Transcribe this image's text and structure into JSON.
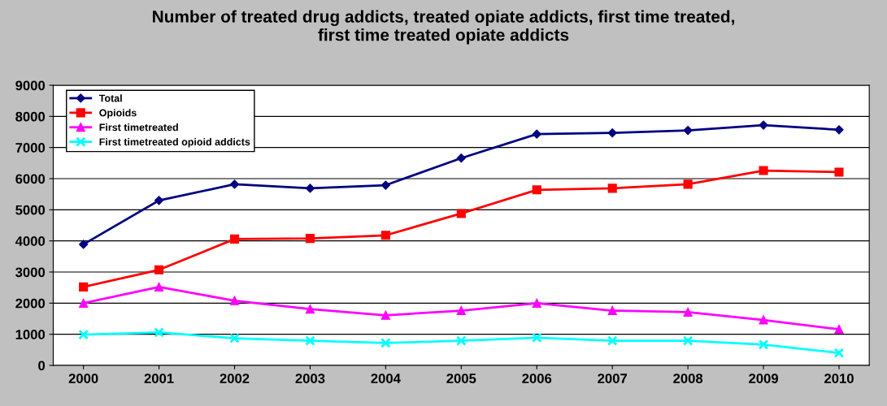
{
  "chart_data": {
    "type": "line",
    "title": "Number of treated drug addicts, treated opiate addicts, first time treated,\nfirst time treated opiate addicts",
    "categories": [
      "2000",
      "2001",
      "2002",
      "2003",
      "2004",
      "2005",
      "2006",
      "2007",
      "2008",
      "2009",
      "2010"
    ],
    "series": [
      {
        "name": "Total",
        "color": "#000080",
        "marker": "diamond",
        "values": [
          3890,
          5300,
          5820,
          5690,
          5790,
          6660,
          7430,
          7470,
          7550,
          7720,
          7570
        ]
      },
      {
        "name": "Opioids",
        "color": "#ff0000",
        "marker": "square",
        "values": [
          2520,
          3070,
          4060,
          4080,
          4180,
          4880,
          5640,
          5690,
          5820,
          6260,
          6210
        ]
      },
      {
        "name": "First timetreated",
        "color": "#ff00ff",
        "marker": "triangle",
        "values": [
          2000,
          2520,
          2080,
          1810,
          1610,
          1760,
          2000,
          1760,
          1710,
          1460,
          1160
        ]
      },
      {
        "name": "First timetreated opioid addicts",
        "color": "#00ffff",
        "marker": "cross",
        "values": [
          990,
          1060,
          870,
          790,
          720,
          790,
          890,
          790,
          790,
          670,
          400
        ]
      }
    ],
    "ylim": [
      0,
      9000
    ],
    "yticks": [
      0,
      1000,
      2000,
      3000,
      4000,
      5000,
      6000,
      7000,
      8000,
      9000
    ],
    "grid": "y",
    "legend": "top left",
    "line_style": "solid"
  }
}
